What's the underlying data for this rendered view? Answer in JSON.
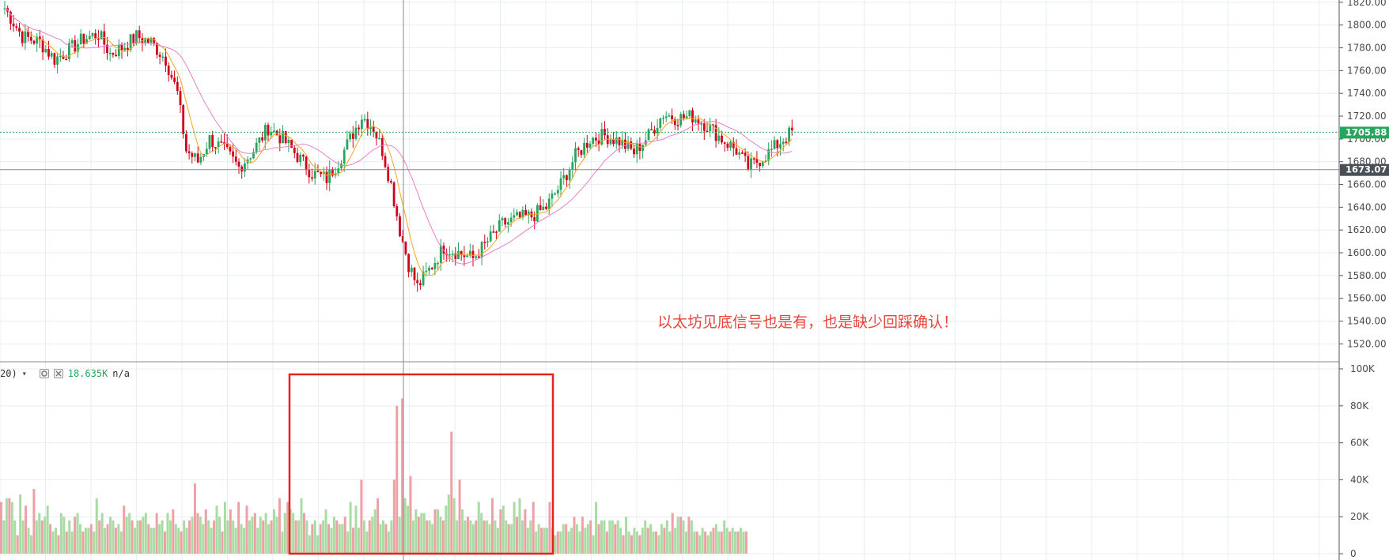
{
  "annotation": "以太坊见底信号也是有，也是缺少回踩确认！",
  "volume_legend": {
    "prefix": "20)",
    "value": "18.635K",
    "extra": "n/a"
  },
  "price_badge": {
    "last": "1705.88",
    "crosshair": "1673.07"
  },
  "icons": {
    "settings": "gear-icon",
    "close": "close-icon",
    "dropdown": "chevron-down-icon"
  },
  "colors": {
    "up": "#26a65b",
    "down": "#d0021b",
    "vol_up": "#a9dca3",
    "vol_down": "#eea0a6",
    "ma_fast": "#f5a623",
    "ma_slow": "#e87fcb",
    "highlight": "#e8231c"
  },
  "chart_data": [
    {
      "type": "candlestick",
      "title": "",
      "y_ticks": [
        "1820.00",
        "1800.00",
        "1780.00",
        "1760.00",
        "1740.00",
        "1720.00",
        "1700.00",
        "1680.00",
        "1660.00",
        "1640.00",
        "1620.00",
        "1600.00",
        "1580.00",
        "1560.00",
        "1540.00",
        "1520.00"
      ],
      "ylim": [
        1505,
        1822
      ],
      "last_price": 1705.88,
      "crosshair_price": 1673.07,
      "series": [
        {
          "name": "",
          "anchors": [
            [
              0,
              1815
            ],
            [
              6,
              1790
            ],
            [
              12,
              1785
            ],
            [
              17,
              1770
            ],
            [
              22,
              1778
            ],
            [
              27,
              1788
            ],
            [
              32,
              1792
            ],
            [
              36,
              1775
            ],
            [
              40,
              1780
            ],
            [
              45,
              1790
            ],
            [
              50,
              1785
            ],
            [
              55,
              1770
            ],
            [
              59,
              1740
            ],
            [
              62,
              1690
            ],
            [
              66,
              1680
            ],
            [
              70,
              1700
            ],
            [
              75,
              1690
            ],
            [
              80,
              1675
            ],
            [
              85,
              1690
            ],
            [
              90,
              1710
            ],
            [
              95,
              1700
            ],
            [
              100,
              1685
            ],
            [
              105,
              1670
            ],
            [
              110,
              1665
            ],
            [
              114,
              1680
            ],
            [
              118,
              1700
            ],
            [
              122,
              1720
            ],
            [
              126,
              1710
            ],
            [
              129,
              1690
            ],
            [
              132,
              1660
            ],
            [
              135,
              1620
            ],
            [
              138,
              1590
            ],
            [
              141,
              1570
            ],
            [
              145,
              1585
            ],
            [
              150,
              1605
            ],
            [
              155,
              1600
            ],
            [
              160,
              1595
            ],
            [
              165,
              1610
            ],
            [
              170,
              1625
            ],
            [
              175,
              1630
            ],
            [
              180,
              1632
            ],
            [
              185,
              1640
            ],
            [
              190,
              1660
            ],
            [
              195,
              1685
            ],
            [
              200,
              1700
            ],
            [
              205,
              1703
            ],
            [
              210,
              1698
            ],
            [
              215,
              1688
            ],
            [
              220,
              1703
            ],
            [
              225,
              1722
            ],
            [
              230,
              1718
            ],
            [
              235,
              1720
            ],
            [
              240,
              1712
            ],
            [
              245,
              1700
            ],
            [
              250,
              1690
            ],
            [
              254,
              1675
            ],
            [
              258,
              1682
            ],
            [
              262,
              1690
            ],
            [
              266,
              1700
            ],
            [
              269,
              1706
            ]
          ]
        }
      ]
    },
    {
      "type": "bar",
      "title": "",
      "y_ticks": [
        "100K",
        "80K",
        "60K",
        "40K",
        "20K",
        "0"
      ],
      "ylim": [
        0,
        103
      ],
      "series": [
        {
          "name": "",
          "values": [
            28,
            18,
            30,
            30,
            28,
            18,
            10,
            32,
            18,
            26,
            14,
            10,
            35,
            18,
            22,
            18,
            20,
            26,
            16,
            12,
            14,
            10,
            22,
            20,
            12,
            18,
            12,
            20,
            22,
            16,
            12,
            14,
            14,
            16,
            12,
            30,
            18,
            22,
            14,
            16,
            20,
            18,
            14,
            16,
            12,
            26,
            20,
            22,
            18,
            14,
            18,
            18,
            20,
            22,
            16,
            14,
            14,
            22,
            16,
            18,
            12,
            22,
            18,
            24,
            16,
            14,
            12,
            18,
            14,
            18,
            20,
            38,
            22,
            20,
            16,
            24,
            18,
            14,
            18,
            26,
            20,
            12,
            28,
            18,
            24,
            18,
            14,
            28,
            16,
            14,
            26,
            18,
            20,
            22,
            14,
            20,
            18,
            22,
            16,
            18,
            24,
            20,
            30,
            12,
            22,
            28,
            24,
            22,
            18,
            18,
            30,
            22,
            18,
            10,
            16,
            18,
            10,
            16,
            18,
            24,
            16,
            14,
            20,
            18,
            16,
            16,
            20,
            12,
            28,
            14,
            26,
            14,
            40,
            18,
            12,
            18,
            20,
            24,
            30,
            16,
            18,
            16,
            12,
            18,
            40,
            80,
            20,
            84,
            30,
            26,
            42,
            18,
            24,
            20,
            22,
            22,
            18,
            18,
            16,
            24,
            24,
            20,
            18,
            26,
            32,
            66,
            30,
            18,
            40,
            24,
            18,
            20,
            18,
            16,
            18,
            28,
            22,
            18,
            18,
            16,
            30,
            18,
            14,
            24,
            26,
            18,
            16,
            16,
            28,
            20,
            30,
            18,
            24,
            14,
            18,
            28,
            12,
            16,
            14,
            14,
            14,
            28,
            14,
            10,
            12,
            12,
            16,
            16,
            12,
            14,
            20,
            16,
            12,
            20,
            14,
            16,
            18,
            10,
            28,
            16,
            18,
            18,
            12,
            18,
            18,
            16,
            18,
            14,
            10,
            20,
            12,
            10,
            14,
            12,
            10,
            14,
            18,
            14,
            16,
            12,
            12,
            10,
            16,
            14,
            18,
            12,
            22,
            14,
            20,
            20,
            18,
            12,
            20,
            18,
            12,
            12,
            10,
            14,
            12,
            10,
            12,
            14,
            16,
            12,
            12,
            18,
            14,
            12,
            14,
            12,
            12,
            14,
            12,
            12
          ]
        }
      ]
    }
  ]
}
